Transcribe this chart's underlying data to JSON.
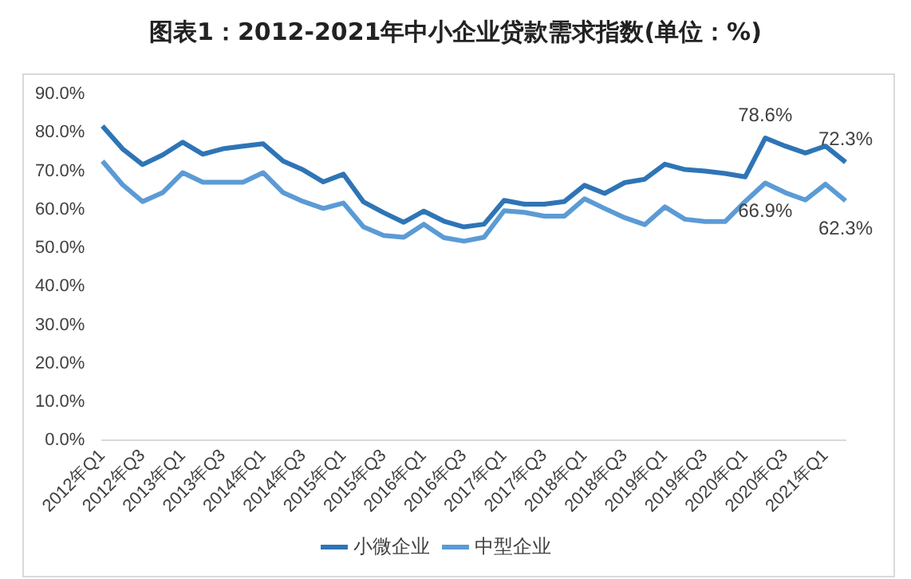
{
  "chart_data": {
    "type": "line",
    "title": "图表1：2012-2021年中小企业贷款需求指数(单位：%)",
    "categories": [
      "2012年Q1",
      null,
      "2012年Q3",
      null,
      "2013年Q1",
      null,
      "2013年Q3",
      null,
      "2014年Q1",
      null,
      "2014年Q3",
      null,
      "2015年Q1",
      null,
      "2015年Q3",
      null,
      "2016年Q1",
      null,
      "2016年Q3",
      null,
      "2017年Q1",
      null,
      "2017年Q3",
      null,
      "2018年Q1",
      null,
      "2018年Q3",
      null,
      "2019年Q1",
      null,
      "2019年Q3",
      null,
      "2020年Q1",
      null,
      "2020年Q3",
      null,
      "2021年Q1",
      null
    ],
    "series": [
      {
        "name": "小微企业",
        "color": "#2e75b6",
        "values": [
          81.7,
          75.8,
          71.7,
          74.2,
          77.5,
          74.4,
          75.8,
          76.5,
          77.1,
          72.6,
          70.3,
          67.2,
          69.2,
          62,
          59.2,
          56.7,
          59.6,
          57,
          55.5,
          56.2,
          62.4,
          61.4,
          61.4,
          62.1,
          66.3,
          64.2,
          67,
          67.9,
          71.8,
          70.4,
          70,
          69.4,
          68.5,
          78.6,
          76.5,
          74.7,
          76.5,
          72.3
        ],
        "value_labels": [
          null,
          null,
          null,
          null,
          null,
          null,
          null,
          null,
          null,
          null,
          null,
          null,
          null,
          null,
          null,
          null,
          null,
          null,
          null,
          null,
          null,
          null,
          null,
          null,
          null,
          null,
          null,
          null,
          null,
          null,
          null,
          null,
          null,
          "78.6%",
          null,
          null,
          null,
          "72.3%"
        ]
      },
      {
        "name": "中型企业",
        "color": "#5b9bd5",
        "values": [
          72.6,
          66.5,
          62.1,
          64.4,
          69.6,
          67.1,
          67.1,
          67.1,
          69.6,
          64.4,
          62.1,
          60.3,
          61.7,
          55.5,
          53.3,
          52.8,
          56.2,
          52.7,
          51.8,
          52.8,
          59.7,
          59.3,
          58.3,
          58.3,
          62.8,
          60.3,
          57.9,
          56.1,
          60.7,
          57.5,
          56.9,
          56.9,
          62.1,
          66.9,
          64.4,
          62.5,
          66.6,
          62.3
        ],
        "value_labels": [
          null,
          null,
          null,
          null,
          null,
          null,
          null,
          null,
          null,
          null,
          null,
          null,
          null,
          null,
          null,
          null,
          null,
          null,
          null,
          null,
          null,
          null,
          null,
          null,
          null,
          null,
          null,
          null,
          null,
          null,
          null,
          null,
          null,
          "66.9%",
          null,
          null,
          null,
          "62.3%"
        ]
      }
    ],
    "ylim": [
      0,
      90
    ],
    "yticks": [
      {
        "value": 0,
        "label": "0.0%"
      },
      {
        "value": 10,
        "label": "10.0%"
      },
      {
        "value": 20,
        "label": "20.0%"
      },
      {
        "value": 30,
        "label": "30.0%"
      },
      {
        "value": 40,
        "label": "40.0%"
      },
      {
        "value": 50,
        "label": "50.0%"
      },
      {
        "value": 60,
        "label": "60.0%"
      },
      {
        "value": 70,
        "label": "70.0%"
      },
      {
        "value": 80,
        "label": "80.0%"
      },
      {
        "value": 90,
        "label": "90.0%"
      }
    ],
    "grid": false,
    "legend": "bottom",
    "marker": "none",
    "line_style": "solid"
  }
}
